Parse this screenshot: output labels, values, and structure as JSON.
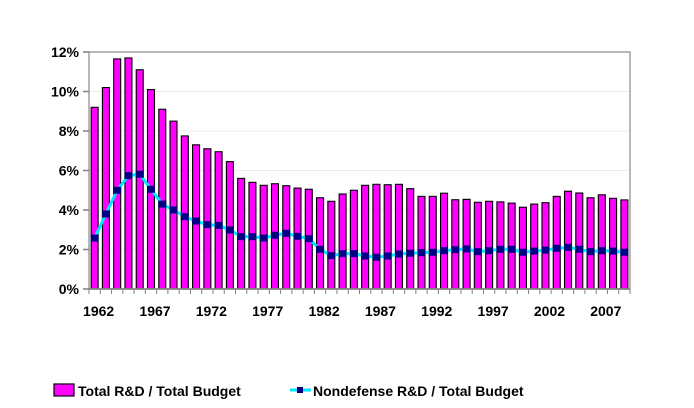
{
  "chart_data": {
    "type": "bar",
    "title": "",
    "xlabel": "",
    "ylabel": "",
    "ylim": [
      0,
      12
    ],
    "yticks": [
      0,
      2,
      4,
      6,
      8,
      10,
      12
    ],
    "ytick_labels": [
      "0%",
      "2%",
      "4%",
      "6%",
      "8%",
      "10%",
      "12%"
    ],
    "xtick_labels": [
      "1962",
      "1967",
      "1972",
      "1977",
      "1982",
      "1987",
      "1992",
      "1997",
      "2002",
      "2007"
    ],
    "grid": true,
    "legend_position": "bottom",
    "categories": [
      1962,
      1963,
      1964,
      1965,
      1966,
      1967,
      1968,
      1969,
      1970,
      1971,
      1972,
      1973,
      1974,
      1975,
      1976,
      1977,
      1978,
      1979,
      1980,
      1981,
      1982,
      1983,
      1984,
      1985,
      1986,
      1987,
      1988,
      1989,
      1990,
      1991,
      1992,
      1993,
      1994,
      1995,
      1996,
      1997,
      1998,
      1999,
      2000,
      2001,
      2002,
      2003,
      2004,
      2005,
      2006,
      2007,
      2008,
      2009
    ],
    "series": [
      {
        "name": "Total R&D / Total Budget",
        "kind": "bar",
        "color": "#ff00ff",
        "values": [
          9.2,
          10.2,
          11.65,
          11.7,
          11.1,
          10.1,
          9.1,
          8.5,
          7.75,
          7.3,
          7.1,
          6.95,
          6.45,
          5.6,
          5.4,
          5.25,
          5.33,
          5.23,
          5.11,
          5.05,
          4.62,
          4.44,
          4.81,
          5.0,
          5.25,
          5.3,
          5.28,
          5.3,
          5.08,
          4.69,
          4.69,
          4.85,
          4.52,
          4.54,
          4.39,
          4.44,
          4.41,
          4.35,
          4.14,
          4.3,
          4.37,
          4.69,
          4.95,
          4.86,
          4.62,
          4.77,
          4.59,
          4.51
        ]
      },
      {
        "name": "Nondefense R&D / Total Budget",
        "kind": "line",
        "color": "#00e5ff",
        "marker_color": "#000080",
        "values": [
          2.58,
          3.8,
          5.0,
          5.74,
          5.81,
          5.05,
          4.3,
          4.0,
          3.66,
          3.44,
          3.26,
          3.22,
          2.99,
          2.65,
          2.65,
          2.58,
          2.72,
          2.82,
          2.67,
          2.55,
          2.01,
          1.69,
          1.79,
          1.79,
          1.67,
          1.61,
          1.67,
          1.77,
          1.81,
          1.84,
          1.86,
          1.94,
          1.99,
          2.03,
          1.89,
          1.94,
          2.01,
          2.01,
          1.86,
          1.92,
          1.97,
          2.06,
          2.11,
          2.01,
          1.89,
          1.94,
          1.92,
          1.86
        ]
      }
    ]
  }
}
